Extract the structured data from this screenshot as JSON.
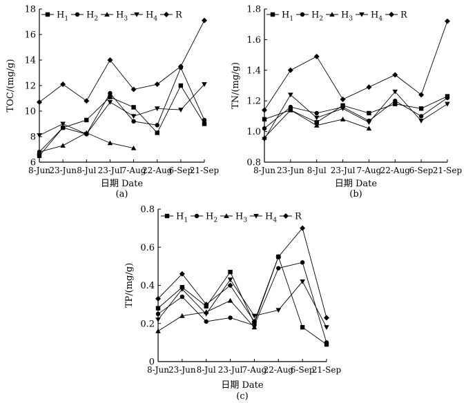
{
  "chart_data": [
    {
      "type": "line",
      "panel_label": "(a)",
      "xlabel": "日期 Date",
      "ylabel": "TOC/(mg/g)",
      "categories": [
        "8-Jun",
        "23-Jun",
        "8-Jul",
        "23-Jul",
        "7-Aug",
        "22-Aug",
        "6-Sep",
        "21-Sep"
      ],
      "ylim": [
        6,
        18
      ],
      "yticks": [
        6,
        8,
        10,
        12,
        14,
        16,
        18
      ],
      "legend": "top-left",
      "series": [
        {
          "name": "H1",
          "label": "H",
          "sub": "1",
          "marker": "square",
          "values": [
            6.5,
            8.7,
            9.3,
            11.1,
            10.3,
            8.3,
            12.0,
            9.0
          ]
        },
        {
          "name": "H2",
          "label": "H",
          "sub": "2",
          "marker": "circle",
          "values": [
            6.8,
            8.7,
            8.2,
            11.4,
            9.2,
            8.9,
            13.4,
            9.3
          ]
        },
        {
          "name": "H3",
          "label": "H",
          "sub": "3",
          "marker": "triangle",
          "values": [
            6.8,
            7.3,
            8.3,
            7.5,
            7.1,
            null,
            null,
            null
          ]
        },
        {
          "name": "H4",
          "label": "H",
          "sub": "4",
          "marker": "triangle-down",
          "values": [
            8.1,
            9.0,
            8.2,
            10.7,
            9.6,
            10.2,
            10.1,
            12.1
          ]
        },
        {
          "name": "R",
          "label": "R",
          "sub": "",
          "marker": "diamond",
          "values": [
            10.7,
            12.1,
            10.8,
            14.0,
            11.7,
            12.1,
            13.5,
            17.1
          ]
        }
      ]
    },
    {
      "type": "line",
      "panel_label": "(b)",
      "xlabel": "日期 Date",
      "ylabel": "TN/(mg/g)",
      "categories": [
        "8-Jun",
        "23-Jun",
        "8-Jul",
        "23-Jul",
        "7-Aug",
        "22-Aug",
        "6-Sep",
        "21-Sep"
      ],
      "ylim": [
        0.8,
        1.8
      ],
      "yticks": [
        "0.8",
        "1.0",
        "1.2",
        "1.4",
        "1.6",
        "1.8"
      ],
      "legend": "top-left",
      "series": [
        {
          "name": "H1",
          "label": "H",
          "sub": "1",
          "marker": "square",
          "values": [
            1.08,
            1.14,
            1.06,
            1.17,
            1.12,
            1.18,
            1.15,
            1.23
          ]
        },
        {
          "name": "H2",
          "label": "H",
          "sub": "2",
          "marker": "circle",
          "values": [
            1.02,
            1.16,
            1.12,
            1.16,
            1.07,
            1.2,
            1.1,
            1.22
          ]
        },
        {
          "name": "H3",
          "label": "H",
          "sub": "3",
          "marker": "triangle",
          "values": [
            0.96,
            1.14,
            1.04,
            1.08,
            1.02,
            null,
            null,
            null
          ]
        },
        {
          "name": "H4",
          "label": "H",
          "sub": "4",
          "marker": "triangle-down",
          "values": [
            0.95,
            1.24,
            1.09,
            1.15,
            1.06,
            1.26,
            1.07,
            1.18
          ]
        },
        {
          "name": "R",
          "label": "R",
          "sub": "",
          "marker": "diamond",
          "values": [
            1.14,
            1.4,
            1.49,
            1.21,
            1.29,
            1.37,
            1.24,
            1.72
          ]
        }
      ]
    },
    {
      "type": "line",
      "panel_label": "(c)",
      "xlabel": "日期 Date",
      "ylabel": "TP/(mg/g)",
      "categories": [
        "8-Jun",
        "23-Jun",
        "8-Jul",
        "23-Jul",
        "7-Aug",
        "22-Aug",
        "6-Sep",
        "21-Sep"
      ],
      "ylim": [
        0,
        0.8
      ],
      "yticks": [
        "0",
        "0.2",
        "0.4",
        "0.6",
        "0.8"
      ],
      "legend": "top-left",
      "series": [
        {
          "name": "H1",
          "label": "H",
          "sub": "1",
          "marker": "square",
          "values": [
            0.28,
            0.39,
            0.29,
            0.47,
            0.2,
            0.55,
            0.18,
            0.09
          ]
        },
        {
          "name": "H2",
          "label": "H",
          "sub": "2",
          "marker": "circle",
          "values": [
            0.25,
            0.34,
            0.21,
            0.23,
            0.19,
            0.49,
            0.52,
            0.1
          ]
        },
        {
          "name": "H3",
          "label": "H",
          "sub": "3",
          "marker": "triangle",
          "values": [
            0.16,
            0.24,
            0.26,
            0.32,
            0.18,
            null,
            null,
            null
          ]
        },
        {
          "name": "H4",
          "label": "H",
          "sub": "4",
          "marker": "triangle-down",
          "values": [
            0.22,
            0.38,
            0.25,
            0.43,
            0.24,
            0.27,
            0.42,
            0.18
          ]
        },
        {
          "name": "R",
          "label": "R",
          "sub": "",
          "marker": "diamond",
          "values": [
            0.33,
            0.46,
            0.3,
            0.4,
            0.21,
            0.55,
            0.7,
            0.23
          ]
        }
      ]
    }
  ]
}
